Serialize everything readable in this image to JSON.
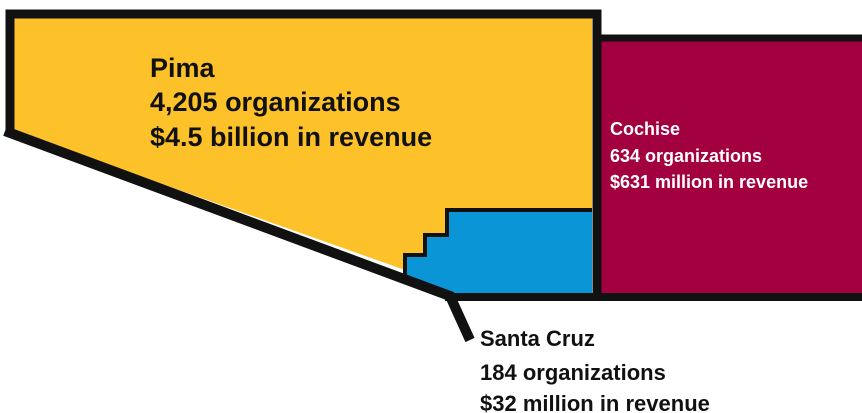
{
  "regions": [
    {
      "name": "Pima",
      "organizations": "4,205 organizations",
      "revenue": "$4.5 billion in revenue"
    },
    {
      "name": "Cochise",
      "organizations": "634 organizations",
      "revenue": "$631 million in revenue"
    },
    {
      "name": "Santa Cruz",
      "organizations": "184 organizations",
      "revenue": "$32 million in revenue"
    }
  ]
}
